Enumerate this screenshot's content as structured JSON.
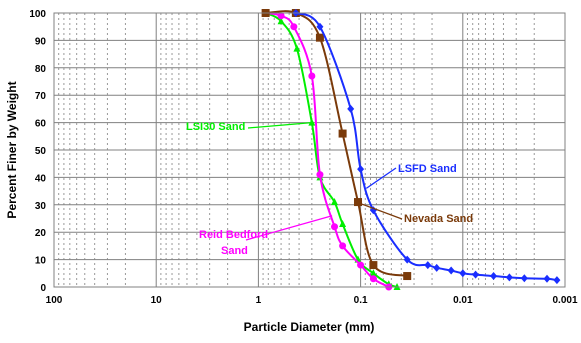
{
  "chart_data": {
    "type": "line",
    "xlabel": "Particle Diameter (mm)",
    "ylabel": "Percent Finer by Weight",
    "x_scale": "log",
    "x_reversed": true,
    "xlim": [
      100,
      0.001
    ],
    "ylim": [
      0,
      100
    ],
    "x_ticks": [
      100,
      10,
      1,
      0.1,
      0.01,
      0.001
    ],
    "x_tick_labels": [
      "100",
      "10",
      "1",
      "0.1",
      "0.01",
      "0.001"
    ],
    "y_ticks": [
      0,
      10,
      20,
      30,
      40,
      50,
      60,
      70,
      80,
      90,
      100
    ],
    "y_tick_labels": [
      "0",
      "10",
      "20",
      "30",
      "40",
      "50",
      "60",
      "70",
      "80",
      "90",
      "100"
    ],
    "grid": true,
    "series": [
      {
        "name": "LSI30 Sand",
        "color": "#00ee00",
        "marker": "triangle",
        "x": [
          0.85,
          0.6,
          0.42,
          0.3,
          0.25,
          0.18,
          0.15,
          0.106,
          0.075,
          0.053,
          0.044
        ],
        "y": [
          100,
          97,
          87,
          60,
          40,
          31,
          23,
          10,
          5,
          1,
          0
        ]
      },
      {
        "name": "Reid Bedford Sand",
        "color": "#ff00ff",
        "marker": "circle",
        "x": [
          0.84,
          0.6,
          0.45,
          0.3,
          0.25,
          0.18,
          0.15,
          0.1,
          0.075,
          0.053
        ],
        "y": [
          100,
          99,
          95,
          77,
          41,
          22,
          15,
          8,
          3,
          0
        ]
      },
      {
        "name": "Nevada Sand",
        "color": "#7a3a0a",
        "marker": "square",
        "x": [
          0.85,
          0.43,
          0.25,
          0.15,
          0.106,
          0.075,
          0.035
        ],
        "y": [
          100,
          100,
          91,
          56,
          31,
          8,
          4
        ]
      },
      {
        "name": "LSFD Sand",
        "color": "#1a2eff",
        "marker": "diamond",
        "x": [
          0.43,
          0.25,
          0.125,
          0.1,
          0.075,
          0.035,
          0.022,
          0.018,
          0.013,
          0.01,
          0.0075,
          0.005,
          0.0035,
          0.0025,
          0.0015,
          0.0012
        ],
        "y": [
          100,
          95,
          65,
          43,
          28,
          10,
          8,
          7,
          6,
          5,
          4.5,
          4,
          3.5,
          3.2,
          3,
          2.5
        ]
      }
    ],
    "annotations": [
      {
        "text": "LSI30 Sand",
        "series": 0
      },
      {
        "text": "Reid Bedford",
        "series": 1
      },
      {
        "text": "Sand",
        "series": 1
      },
      {
        "text": "Nevada Sand",
        "series": 2
      },
      {
        "text": "LSFD Sand",
        "series": 3
      }
    ]
  }
}
